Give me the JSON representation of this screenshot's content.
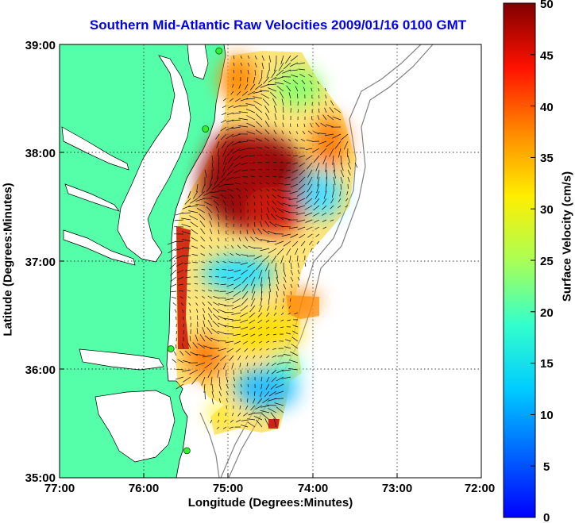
{
  "title": "Southern Mid-Atlantic Raw Velocities 2009/01/16 0100 GMT",
  "xlabel": "Longitude (Degrees:Minutes)",
  "ylabel": "Latitude (Degrees:Minutes)",
  "colorbar_label": "Surface Velocity (cm/s)",
  "chart_data": {
    "type": "heatmap",
    "title": "Southern Mid-Atlantic Raw Velocities 2009/01/16 0100 GMT",
    "xlabel": "Longitude (Degrees:Minutes)",
    "ylabel": "Latitude (Degrees:Minutes)",
    "x_ticks": [
      "77:00",
      "76:00",
      "75:00",
      "74:00",
      "73:00",
      "72:00"
    ],
    "y_ticks": [
      "39:00",
      "38:00",
      "37:00",
      "36:00",
      "35:00"
    ],
    "xlim": [
      -77,
      -72
    ],
    "ylim": [
      35,
      39
    ],
    "grid": true,
    "colorbar": {
      "label": "Surface Velocity (cm/s)",
      "ticks": [
        "50",
        "45",
        "40",
        "35",
        "30",
        "25",
        "20",
        "15",
        "10",
        "5",
        "0"
      ],
      "min": 0,
      "max": 50,
      "colormap": "jet"
    },
    "velocity_regions": [
      {
        "name": "core-high",
        "lon": -74.9,
        "lat": 37.9,
        "speed": 48
      },
      {
        "name": "north-orange",
        "lon": -74.8,
        "lat": 38.7,
        "speed": 30
      },
      {
        "name": "northeast-green",
        "lon": -74.3,
        "lat": 38.6,
        "speed": 20
      },
      {
        "name": "east-cyan",
        "lon": -74.0,
        "lat": 37.6,
        "speed": 15
      },
      {
        "name": "mid-cyan",
        "lon": -74.9,
        "lat": 36.9,
        "speed": 12
      },
      {
        "name": "mid-south-yellow",
        "lon": -74.8,
        "lat": 36.5,
        "speed": 25
      },
      {
        "name": "southwest-red",
        "lon": -75.5,
        "lat": 36.6,
        "speed": 45
      },
      {
        "name": "south-cyan",
        "lon": -74.6,
        "lat": 35.8,
        "speed": 12
      },
      {
        "name": "east-lobe-orange",
        "lon": -74.2,
        "lat": 36.6,
        "speed": 35
      }
    ],
    "stations": [
      {
        "lon": -75.11,
        "lat": 38.94
      },
      {
        "lon": -75.27,
        "lat": 38.22
      },
      {
        "lon": -75.68,
        "lat": 36.19
      },
      {
        "lon": -75.49,
        "lat": 35.25
      }
    ],
    "colors": {
      "land": "#55ffaa",
      "water": "#ffffff",
      "coast": "#000000",
      "bathymetry": "#808080",
      "title": "#0000ee"
    }
  }
}
